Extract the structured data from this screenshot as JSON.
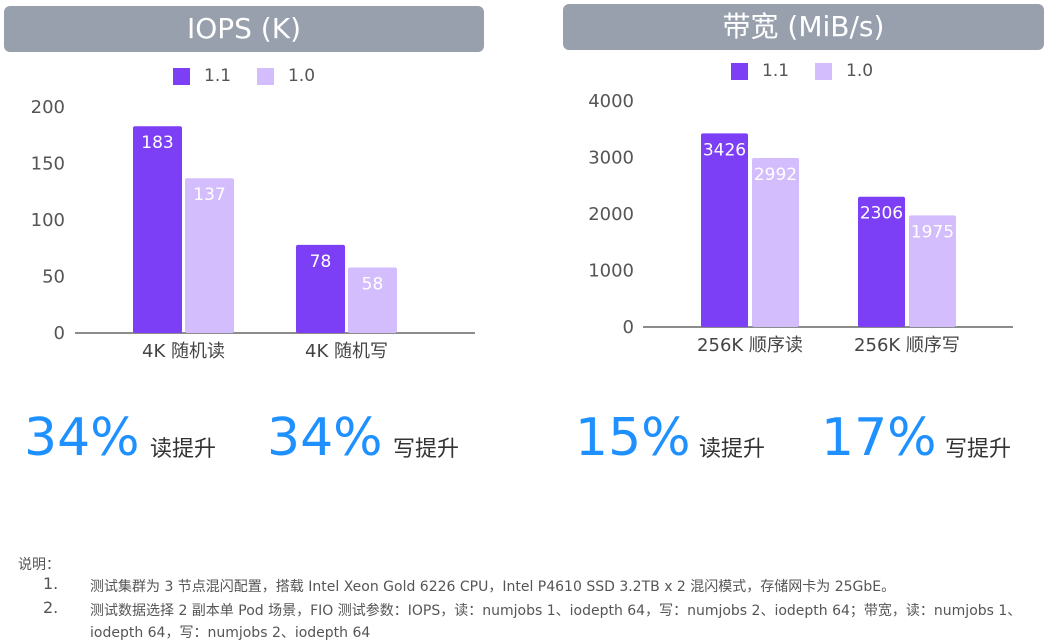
{
  "chart_data": [
    {
      "type": "bar",
      "title": "IOPS (K)",
      "categories": [
        "4K 随机读",
        "4K 随机写"
      ],
      "series": [
        {
          "name": "1.1",
          "values": [
            183,
            78
          ],
          "color": "#7c3ff5"
        },
        {
          "name": "1.0",
          "values": [
            137,
            58
          ],
          "color": "#d3bdfd"
        }
      ],
      "ylim": [
        0,
        200
      ],
      "yticks": [
        0,
        50,
        100,
        150,
        200
      ],
      "grid": false,
      "legend": "top-center"
    },
    {
      "type": "bar",
      "title": "带宽 (MiB/s)",
      "categories": [
        "256K 顺序读",
        "256K 顺序写"
      ],
      "series": [
        {
          "name": "1.1",
          "values": [
            3426,
            2306
          ],
          "color": "#7c3ff5"
        },
        {
          "name": "1.0",
          "values": [
            2992,
            1975
          ],
          "color": "#d3bdfd"
        }
      ],
      "ylim": [
        0,
        4000
      ],
      "yticks": [
        0,
        1000,
        2000,
        3000,
        4000
      ],
      "grid": false,
      "legend": "top-center"
    }
  ],
  "highlights": [
    {
      "value": "34%",
      "label": "读提升"
    },
    {
      "value": "34%",
      "label": "写提升"
    },
    {
      "value": "15%",
      "label": "读提升"
    },
    {
      "value": "17%",
      "label": "写提升"
    }
  ],
  "notes": {
    "title": "说明：",
    "items": [
      {
        "num": "1.",
        "text": "测试集群为 3 节点混闪配置，搭载 Intel Xeon Gold 6226 CPU，Intel P4610 SSD 3.2TB x 2 混闪模式，存储网卡为 25GbE。"
      },
      {
        "num": "2.",
        "text": "测试数据选择 2 副本单 Pod 场景，FIO 测试参数：IOPS，读：numjobs 1、iodepth 64，写：numjobs 2、iodepth 64；带宽，读：numjobs 1、iodepth 64，写：numjobs 2、iodepth 64"
      }
    ]
  },
  "colors": {
    "accent": "#1e90ff",
    "header_bg": "#98a0ae"
  }
}
